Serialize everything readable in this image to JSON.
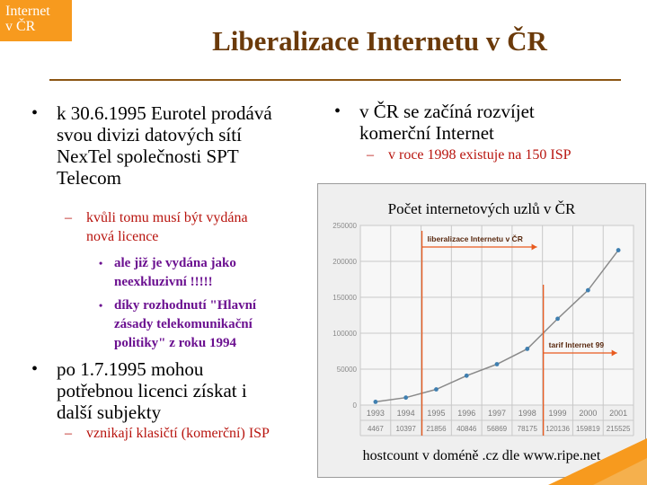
{
  "corner_tag": {
    "line1": "Internet",
    "line2": "v ČR"
  },
  "slide_title": "Liberalizace Internetu v ČR",
  "left": {
    "b1": {
      "bullet": "•",
      "lines": [
        "k 30.6.1995 Eurotel prodává",
        "svou divizi datových sítí",
        "NexTel společnosti SPT",
        "Telecom"
      ]
    },
    "b1_sub": {
      "bullet": "–",
      "lines": [
        "kvůli tomu musí být vydána",
        "nová licence"
      ]
    },
    "b1_sub1": {
      "bullet": "•",
      "lines": [
        "ale již je vydána jako",
        "neexkluzivní !!!!!"
      ]
    },
    "b1_sub2": {
      "bullet": "•",
      "lines": [
        "díky rozhodnutí \"Hlavní",
        "zásady telekomunikační",
        "politiky\" z roku 1994"
      ]
    },
    "b2": {
      "bullet": "•",
      "lines": [
        "po 1.7.1995 mohou",
        "potřebnou licenci získat i",
        "další subjekty"
      ]
    },
    "b2_sub": {
      "bullet": "–",
      "lines": [
        "vznikají klasičtí (komerční) ISP"
      ]
    }
  },
  "right": {
    "b1": {
      "bullet": "•",
      "lines": [
        "v ČR se začíná rozvíjet",
        "komerční Internet"
      ]
    },
    "b1_sub": {
      "bullet": "–",
      "lines": [
        "v roce 1998 existuje na 150 ISP"
      ]
    }
  },
  "chart_title": "Počet internetových uzlů v ČR",
  "chart_caption": "hostcount v doméně .cz dle www.ripe.net",
  "chart_data": {
    "type": "line",
    "categories": [
      "1993",
      "1994",
      "1995",
      "1996",
      "1997",
      "1998",
      "1999",
      "2000",
      "2001"
    ],
    "values": [
      4467,
      10397,
      21856,
      40846,
      56869,
      78175,
      120136,
      159819,
      215525
    ],
    "ylim": [
      0,
      250000
    ],
    "yticks": [
      "0",
      "50000",
      "100000",
      "150000",
      "200000",
      "250000"
    ],
    "value_labels": [
      "4467",
      "10397",
      "21856",
      "40846",
      "56869",
      "78175",
      "120136",
      "159819",
      "215525"
    ],
    "annotations": [
      {
        "text": "liberalizace Internetu v ČR",
        "year": "1995"
      },
      {
        "text": "tarif Internet 99",
        "year": "1999"
      }
    ],
    "grid": true,
    "colors": {
      "line": "#8a8a8a",
      "point": "#3f7fb0",
      "annotation": "#e85a1e",
      "grid": "#c8c8c8"
    }
  },
  "colors": {
    "title": "#6b3a0a",
    "accent": "#f79a1e",
    "sub": "#b8140e",
    "subsub": "#6b1090"
  }
}
